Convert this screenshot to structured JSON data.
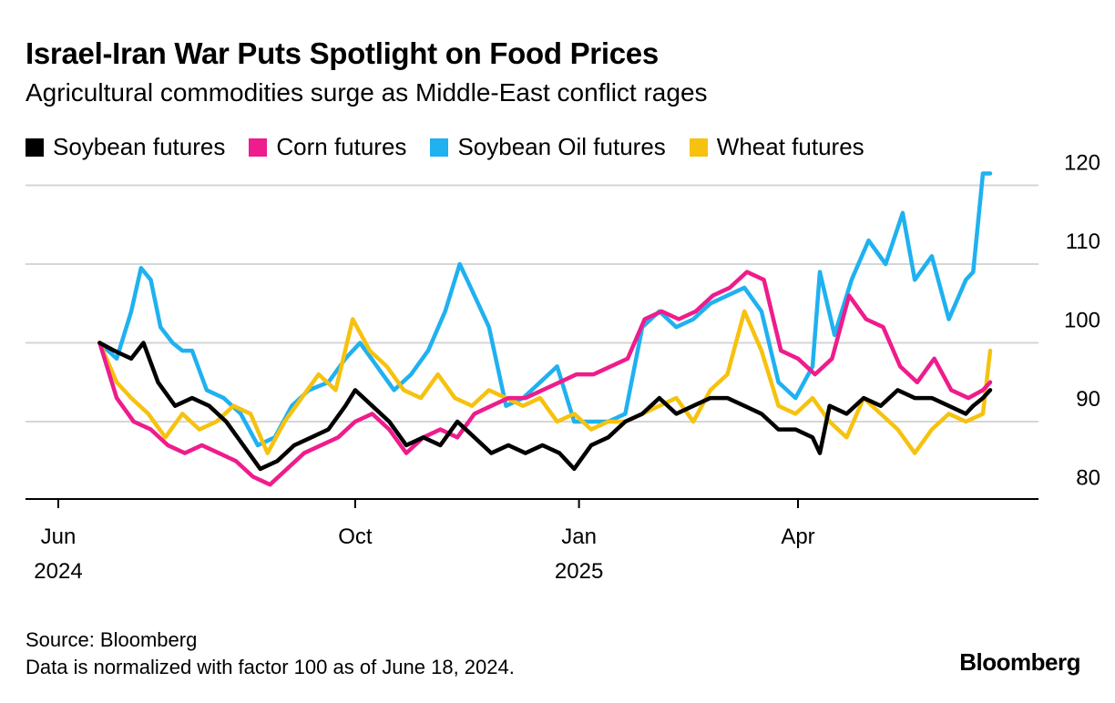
{
  "title": "Israel-Iran War Puts Spotlight on Food Prices",
  "subtitle": "Agricultural commodities surge as Middle-East conflict rages",
  "source_line": "Source: Bloomberg",
  "note_line": "Data is normalized with factor 100 as of June 18, 2024.",
  "logo_text": "Bloomberg",
  "chart_data": {
    "type": "line",
    "title": "Israel-Iran War Puts Spotlight on Food Prices",
    "subtitle": "Agricultural commodities surge as Middle-East conflict rages",
    "ylim": [
      78,
      122
    ],
    "yticks": [
      80,
      90,
      100,
      110,
      120
    ],
    "grid": true,
    "legend_position": "top",
    "x_range": [
      "2024-06-18",
      "2025-06-19"
    ],
    "x_ticks": [
      {
        "date": "2024-06-01",
        "label": "Jun",
        "sublabel": "2024"
      },
      {
        "date": "2024-10-01",
        "label": "Oct",
        "sublabel": ""
      },
      {
        "date": "2025-01-01",
        "label": "Jan",
        "sublabel": "2025"
      },
      {
        "date": "2025-04-01",
        "label": "Apr",
        "sublabel": ""
      }
    ],
    "series": [
      {
        "name": "Soybean Oil futures",
        "color": "#1fb1f0",
        "points": [
          [
            "2024-06-18",
            100
          ],
          [
            "2024-06-25",
            98
          ],
          [
            "2024-07-01",
            104
          ],
          [
            "2024-07-05",
            109.5
          ],
          [
            "2024-07-09",
            108
          ],
          [
            "2024-07-13",
            102
          ],
          [
            "2024-07-18",
            100
          ],
          [
            "2024-07-22",
            99
          ],
          [
            "2024-07-26",
            99
          ],
          [
            "2024-08-01",
            94
          ],
          [
            "2024-08-08",
            93
          ],
          [
            "2024-08-15",
            91
          ],
          [
            "2024-08-22",
            87
          ],
          [
            "2024-08-29",
            88
          ],
          [
            "2024-09-05",
            92
          ],
          [
            "2024-09-12",
            94
          ],
          [
            "2024-09-20",
            95
          ],
          [
            "2024-09-27",
            98
          ],
          [
            "2024-10-03",
            100
          ],
          [
            "2024-10-10",
            97
          ],
          [
            "2024-10-17",
            94
          ],
          [
            "2024-10-24",
            96
          ],
          [
            "2024-10-31",
            99
          ],
          [
            "2024-11-07",
            104
          ],
          [
            "2024-11-13",
            110
          ],
          [
            "2024-11-19",
            106
          ],
          [
            "2024-11-25",
            102
          ],
          [
            "2024-12-02",
            92
          ],
          [
            "2024-12-09",
            93
          ],
          [
            "2024-12-16",
            95
          ],
          [
            "2024-12-23",
            97
          ],
          [
            "2024-12-30",
            90
          ],
          [
            "2025-01-06",
            90
          ],
          [
            "2025-01-13",
            90
          ],
          [
            "2025-01-20",
            91
          ],
          [
            "2025-01-27",
            102
          ],
          [
            "2025-02-03",
            104
          ],
          [
            "2025-02-10",
            102
          ],
          [
            "2025-02-17",
            103
          ],
          [
            "2025-02-24",
            105
          ],
          [
            "2025-03-03",
            106
          ],
          [
            "2025-03-10",
            107
          ],
          [
            "2025-03-17",
            104
          ],
          [
            "2025-03-24",
            95
          ],
          [
            "2025-03-31",
            93
          ],
          [
            "2025-04-07",
            97
          ],
          [
            "2025-04-10",
            109
          ],
          [
            "2025-04-16",
            101
          ],
          [
            "2025-04-23",
            108
          ],
          [
            "2025-04-30",
            113
          ],
          [
            "2025-05-07",
            110
          ],
          [
            "2025-05-14",
            116.5
          ],
          [
            "2025-05-19",
            108
          ],
          [
            "2025-05-26",
            111
          ],
          [
            "2025-06-02",
            103
          ],
          [
            "2025-06-09",
            108
          ],
          [
            "2025-06-12",
            109
          ],
          [
            "2025-06-16",
            121.5
          ],
          [
            "2025-06-19",
            121.5
          ]
        ]
      },
      {
        "name": "Wheat futures",
        "color": "#f6c20f",
        "points": [
          [
            "2024-06-18",
            100
          ],
          [
            "2024-06-25",
            95
          ],
          [
            "2024-07-01",
            93
          ],
          [
            "2024-07-08",
            91
          ],
          [
            "2024-07-15",
            88
          ],
          [
            "2024-07-22",
            91
          ],
          [
            "2024-07-29",
            89
          ],
          [
            "2024-08-05",
            90
          ],
          [
            "2024-08-12",
            92
          ],
          [
            "2024-08-19",
            91
          ],
          [
            "2024-08-26",
            86
          ],
          [
            "2024-09-02",
            90
          ],
          [
            "2024-09-09",
            93
          ],
          [
            "2024-09-16",
            96
          ],
          [
            "2024-09-23",
            94
          ],
          [
            "2024-09-30",
            103
          ],
          [
            "2024-10-07",
            99
          ],
          [
            "2024-10-14",
            97
          ],
          [
            "2024-10-21",
            94
          ],
          [
            "2024-10-28",
            93
          ],
          [
            "2024-11-04",
            96
          ],
          [
            "2024-11-11",
            93
          ],
          [
            "2024-11-18",
            92
          ],
          [
            "2024-11-25",
            94
          ],
          [
            "2024-12-02",
            93
          ],
          [
            "2024-12-09",
            92
          ],
          [
            "2024-12-16",
            93
          ],
          [
            "2024-12-23",
            90
          ],
          [
            "2024-12-30",
            91
          ],
          [
            "2025-01-06",
            89
          ],
          [
            "2025-01-13",
            90
          ],
          [
            "2025-01-20",
            90
          ],
          [
            "2025-01-27",
            91
          ],
          [
            "2025-02-03",
            92
          ],
          [
            "2025-02-10",
            93
          ],
          [
            "2025-02-17",
            90
          ],
          [
            "2025-02-24",
            94
          ],
          [
            "2025-03-03",
            96
          ],
          [
            "2025-03-10",
            104
          ],
          [
            "2025-03-17",
            99
          ],
          [
            "2025-03-24",
            92
          ],
          [
            "2025-03-31",
            91
          ],
          [
            "2025-04-07",
            93
          ],
          [
            "2025-04-14",
            90
          ],
          [
            "2025-04-21",
            88
          ],
          [
            "2025-04-28",
            93
          ],
          [
            "2025-05-05",
            91
          ],
          [
            "2025-05-12",
            89
          ],
          [
            "2025-05-19",
            86
          ],
          [
            "2025-05-26",
            89
          ],
          [
            "2025-06-02",
            91
          ],
          [
            "2025-06-09",
            90
          ],
          [
            "2025-06-16",
            91
          ],
          [
            "2025-06-19",
            99
          ]
        ]
      },
      {
        "name": "Corn futures",
        "color": "#ee1c8c",
        "points": [
          [
            "2024-06-18",
            100
          ],
          [
            "2024-06-25",
            93
          ],
          [
            "2024-07-02",
            90
          ],
          [
            "2024-07-09",
            89
          ],
          [
            "2024-07-16",
            87
          ],
          [
            "2024-07-23",
            86
          ],
          [
            "2024-07-30",
            87
          ],
          [
            "2024-08-06",
            86
          ],
          [
            "2024-08-13",
            85
          ],
          [
            "2024-08-20",
            83
          ],
          [
            "2024-08-27",
            82
          ],
          [
            "2024-09-03",
            84
          ],
          [
            "2024-09-10",
            86
          ],
          [
            "2024-09-17",
            87
          ],
          [
            "2024-09-24",
            88
          ],
          [
            "2024-10-01",
            90
          ],
          [
            "2024-10-08",
            91
          ],
          [
            "2024-10-15",
            89
          ],
          [
            "2024-10-22",
            86
          ],
          [
            "2024-10-29",
            88
          ],
          [
            "2024-11-05",
            89
          ],
          [
            "2024-11-12",
            88
          ],
          [
            "2024-11-19",
            91
          ],
          [
            "2024-11-26",
            92
          ],
          [
            "2024-12-03",
            93
          ],
          [
            "2024-12-10",
            93
          ],
          [
            "2024-12-17",
            94
          ],
          [
            "2024-12-24",
            95
          ],
          [
            "2024-12-31",
            96
          ],
          [
            "2025-01-07",
            96
          ],
          [
            "2025-01-14",
            97
          ],
          [
            "2025-01-21",
            98
          ],
          [
            "2025-01-28",
            103
          ],
          [
            "2025-02-04",
            104
          ],
          [
            "2025-02-11",
            103
          ],
          [
            "2025-02-18",
            104
          ],
          [
            "2025-02-25",
            106
          ],
          [
            "2025-03-04",
            107
          ],
          [
            "2025-03-11",
            109
          ],
          [
            "2025-03-18",
            108
          ],
          [
            "2025-03-25",
            99
          ],
          [
            "2025-04-01",
            98
          ],
          [
            "2025-04-08",
            96
          ],
          [
            "2025-04-15",
            98
          ],
          [
            "2025-04-22",
            106
          ],
          [
            "2025-04-29",
            103
          ],
          [
            "2025-05-06",
            102
          ],
          [
            "2025-05-13",
            97
          ],
          [
            "2025-05-20",
            95
          ],
          [
            "2025-05-27",
            98
          ],
          [
            "2025-06-03",
            94
          ],
          [
            "2025-06-10",
            93
          ],
          [
            "2025-06-16",
            94
          ],
          [
            "2025-06-19",
            95
          ]
        ]
      },
      {
        "name": "Soybean futures",
        "color": "#000000",
        "points": [
          [
            "2024-06-18",
            100
          ],
          [
            "2024-06-24",
            99
          ],
          [
            "2024-07-01",
            98
          ],
          [
            "2024-07-06",
            100
          ],
          [
            "2024-07-12",
            95
          ],
          [
            "2024-07-19",
            92
          ],
          [
            "2024-07-26",
            93
          ],
          [
            "2024-08-02",
            92
          ],
          [
            "2024-08-09",
            90
          ],
          [
            "2024-08-16",
            87
          ],
          [
            "2024-08-23",
            84
          ],
          [
            "2024-08-30",
            85
          ],
          [
            "2024-09-06",
            87
          ],
          [
            "2024-09-13",
            88
          ],
          [
            "2024-09-20",
            89
          ],
          [
            "2024-09-27",
            92
          ],
          [
            "2024-10-01",
            94
          ],
          [
            "2024-10-08",
            92
          ],
          [
            "2024-10-15",
            90
          ],
          [
            "2024-10-22",
            87
          ],
          [
            "2024-10-29",
            88
          ],
          [
            "2024-11-05",
            87
          ],
          [
            "2024-11-12",
            90
          ],
          [
            "2024-11-19",
            88
          ],
          [
            "2024-11-26",
            86
          ],
          [
            "2024-12-03",
            87
          ],
          [
            "2024-12-10",
            86
          ],
          [
            "2024-12-17",
            87
          ],
          [
            "2024-12-24",
            86
          ],
          [
            "2024-12-30",
            84
          ],
          [
            "2025-01-06",
            87
          ],
          [
            "2025-01-13",
            88
          ],
          [
            "2025-01-20",
            90
          ],
          [
            "2025-01-27",
            91
          ],
          [
            "2025-02-03",
            93
          ],
          [
            "2025-02-10",
            91
          ],
          [
            "2025-02-17",
            92
          ],
          [
            "2025-02-24",
            93
          ],
          [
            "2025-03-03",
            93
          ],
          [
            "2025-03-10",
            92
          ],
          [
            "2025-03-17",
            91
          ],
          [
            "2025-03-24",
            89
          ],
          [
            "2025-03-31",
            89
          ],
          [
            "2025-04-07",
            88
          ],
          [
            "2025-04-10",
            86
          ],
          [
            "2025-04-14",
            92
          ],
          [
            "2025-04-21",
            91
          ],
          [
            "2025-04-28",
            93
          ],
          [
            "2025-05-05",
            92
          ],
          [
            "2025-05-12",
            94
          ],
          [
            "2025-05-19",
            93
          ],
          [
            "2025-05-26",
            93
          ],
          [
            "2025-06-02",
            92
          ],
          [
            "2025-06-09",
            91
          ],
          [
            "2025-06-12",
            92
          ],
          [
            "2025-06-16",
            93
          ],
          [
            "2025-06-19",
            94
          ]
        ]
      }
    ]
  }
}
